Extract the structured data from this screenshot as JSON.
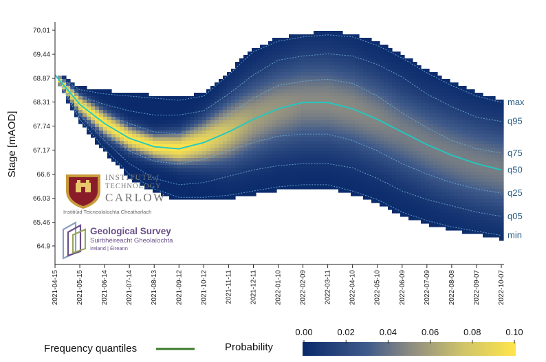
{
  "chart_data": {
    "type": "heatmap",
    "ylabel": "Stage [mAOD]",
    "y_ticks": [
      "70.01",
      "69.44",
      "68.87",
      "68.31",
      "67.74",
      "67.17",
      "66.6",
      "66.03",
      "65.46",
      "64.9"
    ],
    "x_ticks": [
      "2021-04-15",
      "2021-05-15",
      "2021-06-14",
      "2021-07-14",
      "2021-08-13",
      "2021-09-12",
      "2021-10-12",
      "2021-11-11",
      "2021-12-11",
      "2022-01-10",
      "2022-02-09",
      "2022-03-11",
      "2022-04-10",
      "2022-05-10",
      "2022-06-09",
      "2022-07-09",
      "2022-08-08",
      "2022-09-07",
      "2022-10-07"
    ],
    "ylim": [
      64.6,
      70.3
    ],
    "quantile_labels": [
      "max",
      "q95",
      "q75",
      "q50",
      "q25",
      "q05",
      "min"
    ],
    "quantiles": {
      "x": [
        0,
        1,
        2,
        3,
        4,
        5,
        6,
        7,
        8,
        9,
        10,
        11,
        12,
        13,
        14,
        15,
        16,
        17,
        18
      ],
      "max": [
        68.95,
        68.6,
        68.5,
        68.45,
        68.4,
        68.35,
        68.45,
        68.95,
        69.5,
        69.75,
        69.85,
        69.9,
        69.85,
        69.65,
        69.35,
        69.0,
        68.7,
        68.45,
        68.3
      ],
      "q95": [
        68.95,
        68.45,
        68.25,
        68.1,
        68.0,
        68.0,
        68.1,
        68.5,
        68.95,
        69.3,
        69.4,
        69.45,
        69.4,
        69.2,
        68.9,
        68.5,
        68.2,
        67.95,
        67.85
      ],
      "q75": [
        68.95,
        68.3,
        68.0,
        67.8,
        67.6,
        67.55,
        67.7,
        68.0,
        68.4,
        68.7,
        68.8,
        68.85,
        68.75,
        68.45,
        68.05,
        67.7,
        67.4,
        67.2,
        67.1
      ],
      "q50": [
        68.95,
        68.25,
        67.8,
        67.45,
        67.25,
        67.2,
        67.35,
        67.6,
        67.9,
        68.15,
        68.3,
        68.3,
        68.15,
        67.9,
        67.6,
        67.3,
        67.05,
        66.85,
        66.7
      ],
      "q25": [
        68.95,
        68.15,
        67.6,
        67.15,
        66.9,
        66.85,
        66.95,
        67.15,
        67.35,
        67.5,
        67.55,
        67.55,
        67.4,
        67.15,
        66.85,
        66.6,
        66.4,
        66.25,
        66.15
      ],
      "q05": [
        68.95,
        68.0,
        67.4,
        66.85,
        66.5,
        66.35,
        66.4,
        66.55,
        66.7,
        66.8,
        66.85,
        66.85,
        66.75,
        66.5,
        66.2,
        66.0,
        65.85,
        65.7,
        65.6
      ],
      "min": [
        68.95,
        67.9,
        67.2,
        66.6,
        66.25,
        66.05,
        66.05,
        66.1,
        66.2,
        66.3,
        66.35,
        66.35,
        66.2,
        66.0,
        65.7,
        65.5,
        65.35,
        65.25,
        65.15
      ]
    },
    "density_sigma": [
      0.05,
      0.15,
      0.2,
      0.2,
      0.2,
      0.25,
      0.35,
      0.5,
      0.6,
      0.65,
      0.7,
      0.7,
      0.7,
      0.7,
      0.7,
      0.7,
      0.7,
      0.7,
      0.7
    ],
    "density_peak": [
      0.1,
      0.1,
      0.1,
      0.1,
      0.1,
      0.1,
      0.09,
      0.075,
      0.06,
      0.055,
      0.05,
      0.05,
      0.05,
      0.048,
      0.045,
      0.045,
      0.045,
      0.045,
      0.045
    ],
    "colorbar": {
      "label": "Probability",
      "ticks": [
        "0.00",
        "0.02",
        "0.04",
        "0.06",
        "0.08",
        "0.10"
      ],
      "range": [
        0,
        0.1
      ]
    },
    "legend": {
      "label": "Frequency  quantiles",
      "color": "#3c7a2a"
    },
    "colors": {
      "low": "#0a2a6b",
      "mid": "#808080",
      "high": "#ffe54a",
      "median_line": "#22c8c0",
      "quantile_line": "#6fb4d8"
    }
  },
  "logos": {
    "carlow": {
      "line1": "INSTITUTE",
      "line1_of": "of",
      "line2": "TECHNOLOGY",
      "line3": "CARLOW",
      "line4": "Institiúid Teicneolaíochta Cheatharlach"
    },
    "gsi": {
      "title": "Geological Survey",
      "sub1": "Suirbhéireacht Gheolaíochta",
      "sub2": "Ireland | Éireann"
    }
  }
}
